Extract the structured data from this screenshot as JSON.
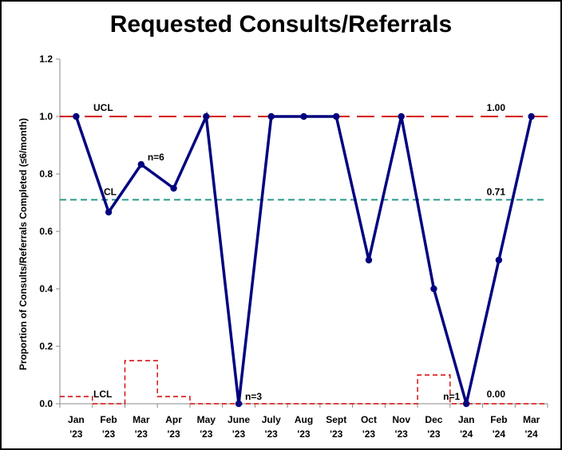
{
  "chart_data": {
    "type": "line",
    "title": "Requested Consults/Referrals",
    "xlabel": "",
    "ylabel": "Proportion of Consults/Referrals Completed (≤6/month)",
    "ylim": [
      0,
      1.2
    ],
    "yticks": [
      "0.0",
      "0.2",
      "0.4",
      "0.6",
      "0.8",
      "1.0",
      "1.2"
    ],
    "grid": false,
    "categories": [
      [
        "Jan",
        "'23"
      ],
      [
        "Feb",
        "'23"
      ],
      [
        "Mar",
        "'23"
      ],
      [
        "Apr",
        "'23"
      ],
      [
        "May",
        "'23"
      ],
      [
        "June",
        "'23"
      ],
      [
        "July",
        "'23"
      ],
      [
        "Aug",
        "'23"
      ],
      [
        "Sept",
        "'23"
      ],
      [
        "Oct",
        "'23"
      ],
      [
        "Nov",
        "'23"
      ],
      [
        "Dec",
        "'23"
      ],
      [
        "Jan",
        "'24"
      ],
      [
        "Feb",
        "'24"
      ],
      [
        "Mar",
        "'24"
      ]
    ],
    "series": [
      {
        "values": [
          1.0,
          0.667,
          0.833,
          0.75,
          1.0,
          0.0,
          1.0,
          1.0,
          1.0,
          0.5,
          1.0,
          0.4,
          0.0,
          0.5,
          1.0
        ]
      }
    ],
    "ucl": 1.0,
    "cl": 0.71,
    "lcl": [
      0.025,
      0.0,
      0.15,
      0.025,
      0.0,
      0.0,
      0.0,
      0.0,
      0.0,
      0.0,
      0.0,
      0.1,
      0.0,
      0.0,
      0.0
    ],
    "line_labels": {
      "ucl": "UCL",
      "cl": "CL",
      "lcl": "LCL"
    },
    "value_labels": {
      "ucl": "1.00",
      "cl": "0.71",
      "lcl": "0.00"
    },
    "point_annotations": [
      {
        "index": 2,
        "text": "n=6"
      },
      {
        "index": 5,
        "text": "n=3"
      },
      {
        "index": 12,
        "text": "n=1",
        "side": "left"
      }
    ],
    "colors": {
      "series": "#00007f",
      "ucl": "#d40000",
      "cl": "#2a9a8a",
      "lcl": "#d40000"
    }
  }
}
